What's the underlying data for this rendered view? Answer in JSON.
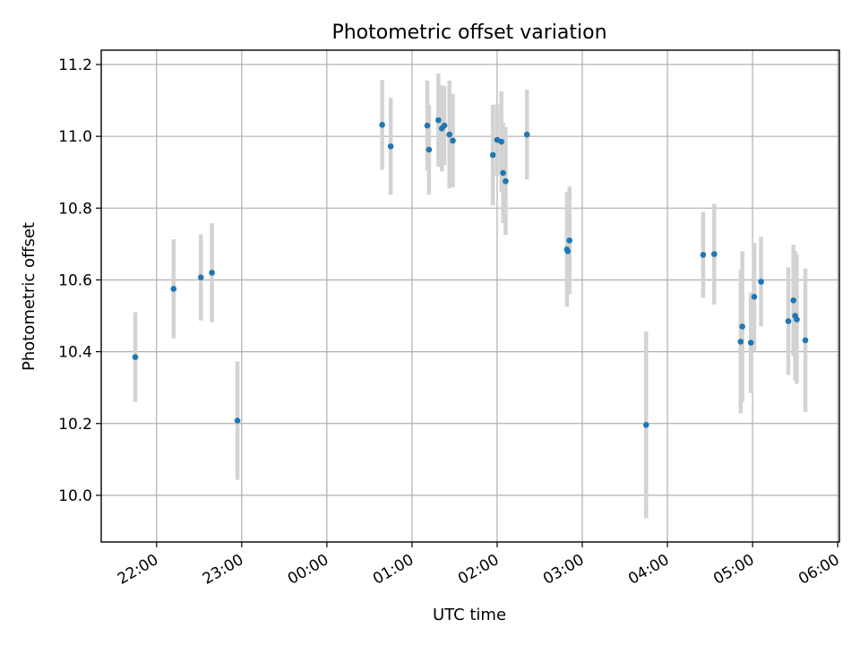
{
  "chart_data": {
    "type": "scatter",
    "title": "Photometric offset variation",
    "xlabel": "UTC time",
    "ylabel": "Photometric offset",
    "x_unit": "hours since 00:00 UTC",
    "xlim": [
      -2.65,
      6.02
    ],
    "ylim": [
      9.87,
      11.24
    ],
    "x_ticks": [
      {
        "value": -2,
        "label": "22:00"
      },
      {
        "value": -1,
        "label": "23:00"
      },
      {
        "value": 0,
        "label": "00:00"
      },
      {
        "value": 1,
        "label": "01:00"
      },
      {
        "value": 2,
        "label": "02:00"
      },
      {
        "value": 3,
        "label": "03:00"
      },
      {
        "value": 4,
        "label": "04:00"
      },
      {
        "value": 5,
        "label": "05:00"
      },
      {
        "value": 6,
        "label": "06:00"
      }
    ],
    "y_ticks": [
      {
        "value": 10.0,
        "label": "10.0"
      },
      {
        "value": 10.2,
        "label": "10.2"
      },
      {
        "value": 10.4,
        "label": "10.4"
      },
      {
        "value": 10.6,
        "label": "10.6"
      },
      {
        "value": 10.8,
        "label": "10.8"
      },
      {
        "value": 11.0,
        "label": "11.0"
      },
      {
        "value": 11.2,
        "label": "11.2"
      }
    ],
    "grid": true,
    "colors": {
      "point": "#1f77b4",
      "errorbar": "#d3d3d3"
    },
    "points": [
      {
        "x": -2.25,
        "y": 10.385,
        "err": 0.125
      },
      {
        "x": -1.8,
        "y": 10.575,
        "err": 0.138
      },
      {
        "x": -1.48,
        "y": 10.607,
        "err": 0.12
      },
      {
        "x": -1.35,
        "y": 10.62,
        "err": 0.138
      },
      {
        "x": -1.05,
        "y": 10.208,
        "err": 0.165
      },
      {
        "x": 0.65,
        "y": 11.032,
        "err": 0.125
      },
      {
        "x": 0.75,
        "y": 10.972,
        "err": 0.135
      },
      {
        "x": 1.18,
        "y": 11.03,
        "err": 0.125
      },
      {
        "x": 1.2,
        "y": 10.963,
        "err": 0.125
      },
      {
        "x": 1.31,
        "y": 11.045,
        "err": 0.13
      },
      {
        "x": 1.35,
        "y": 11.022,
        "err": 0.12
      },
      {
        "x": 1.38,
        "y": 11.03,
        "err": 0.11
      },
      {
        "x": 1.44,
        "y": 11.005,
        "err": 0.15
      },
      {
        "x": 1.48,
        "y": 10.988,
        "err": 0.13
      },
      {
        "x": 1.95,
        "y": 10.948,
        "err": 0.14
      },
      {
        "x": 2.0,
        "y": 10.99,
        "err": 0.1
      },
      {
        "x": 2.05,
        "y": 10.985,
        "err": 0.14
      },
      {
        "x": 2.07,
        "y": 10.898,
        "err": 0.14
      },
      {
        "x": 2.1,
        "y": 10.875,
        "err": 0.15
      },
      {
        "x": 2.35,
        "y": 11.005,
        "err": 0.125
      },
      {
        "x": 2.82,
        "y": 10.685,
        "err": 0.16
      },
      {
        "x": 2.83,
        "y": 10.68,
        "err": 0.12
      },
      {
        "x": 2.85,
        "y": 10.71,
        "err": 0.15
      },
      {
        "x": 3.75,
        "y": 10.196,
        "err": 0.26
      },
      {
        "x": 4.42,
        "y": 10.67,
        "err": 0.12
      },
      {
        "x": 4.55,
        "y": 10.672,
        "err": 0.14
      },
      {
        "x": 4.86,
        "y": 10.428,
        "err": 0.2
      },
      {
        "x": 4.88,
        "y": 10.47,
        "err": 0.21
      },
      {
        "x": 4.98,
        "y": 10.425,
        "err": 0.14
      },
      {
        "x": 5.02,
        "y": 10.553,
        "err": 0.15
      },
      {
        "x": 5.1,
        "y": 10.595,
        "err": 0.125
      },
      {
        "x": 5.42,
        "y": 10.485,
        "err": 0.15
      },
      {
        "x": 5.48,
        "y": 10.543,
        "err": 0.155
      },
      {
        "x": 5.5,
        "y": 10.5,
        "err": 0.18
      },
      {
        "x": 5.52,
        "y": 10.49,
        "err": 0.18
      },
      {
        "x": 5.62,
        "y": 10.432,
        "err": 0.2
      }
    ]
  }
}
